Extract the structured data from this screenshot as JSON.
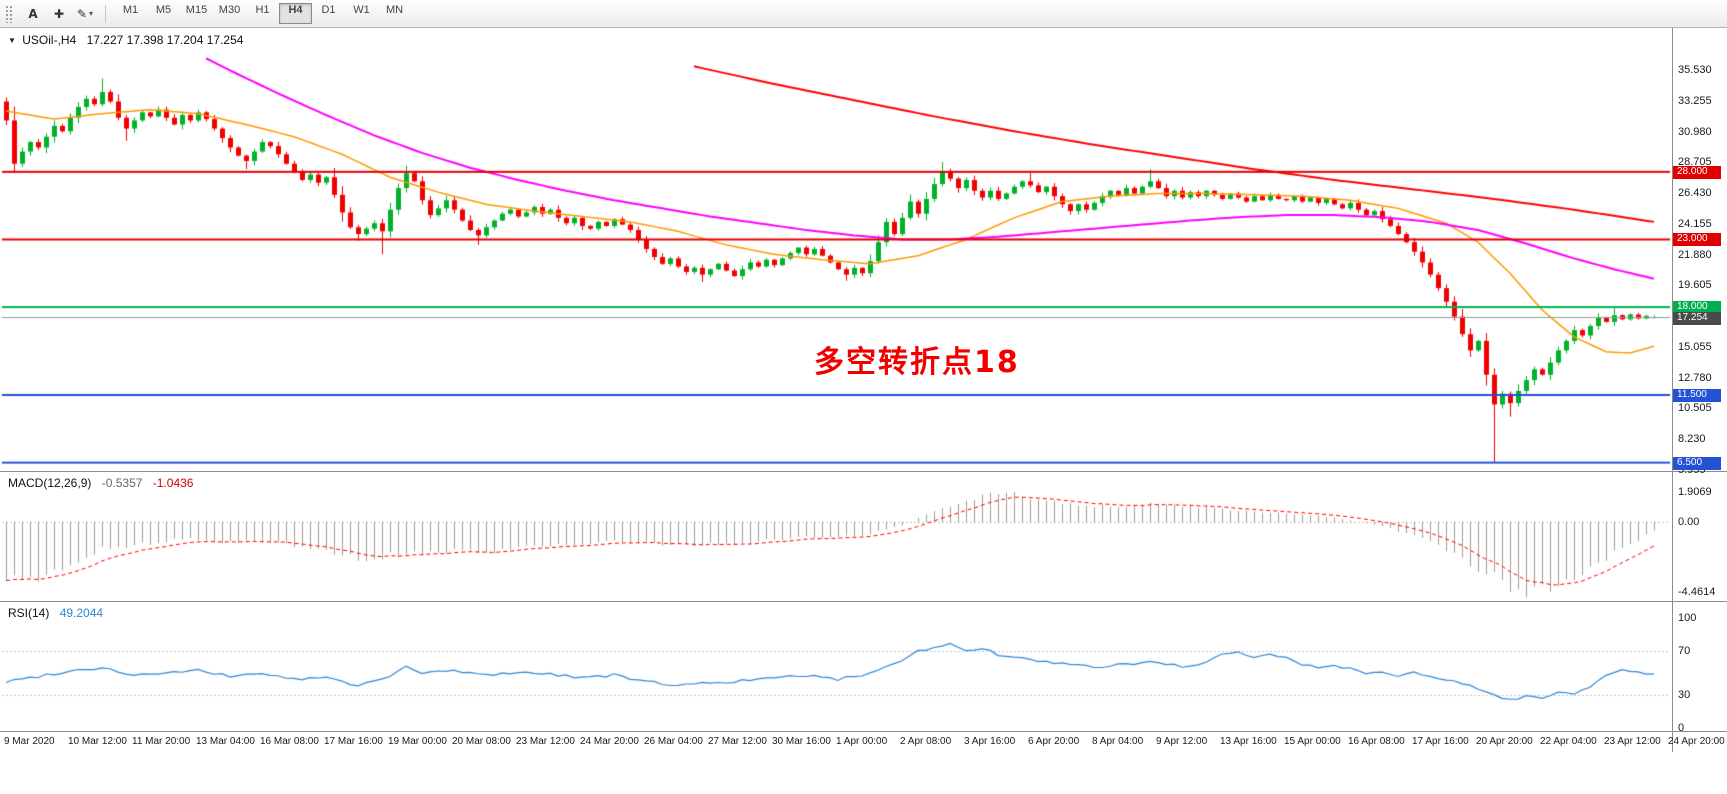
{
  "toolbar": {
    "text_tool_label": "A",
    "timeframes": [
      "M1",
      "M5",
      "M15",
      "M30",
      "H1",
      "H4",
      "D1",
      "W1",
      "MN"
    ],
    "active_timeframe": "H4"
  },
  "icons": {
    "chevron_down": "▼",
    "crosshair": "✚",
    "pencil": "✎",
    "dropdown_arrow": "▾"
  },
  "chart": {
    "symbol_period": "USOil-,H4",
    "ohlc_text": "17.227 17.398 17.204 17.254"
  },
  "chart_data": {
    "type": "candlestick",
    "symbol": "USOil-",
    "timeframe": "H4",
    "current_ohlc": {
      "open": 17.227,
      "high": 17.398,
      "low": 17.204,
      "close": 17.254
    },
    "candle_colors": {
      "up": "#00B22A",
      "down": "#F20000"
    },
    "price_axis": {
      "tick_labels": [
        "35.530",
        "33.255",
        "30.980",
        "28.705",
        "26.430",
        "24.155",
        "21.880",
        "19.605",
        "15.055",
        "12.780",
        "10.505",
        "8.230",
        "5.955"
      ]
    },
    "time_axis": {
      "bars_per_label": 8,
      "labels": [
        "9 Mar 2020",
        "10 Mar 12:00",
        "11 Mar 20:00",
        "13 Mar 04:00",
        "16 Mar 08:00",
        "17 Mar 16:00",
        "19 Mar 00:00",
        "20 Mar 08:00",
        "23 Mar 12:00",
        "24 Mar 20:00",
        "26 Mar 04:00",
        "27 Mar 12:00",
        "30 Mar 16:00",
        "1 Apr 00:00",
        "2 Apr 08:00",
        "3 Apr 16:00",
        "6 Apr 20:00",
        "8 Apr 04:00",
        "9 Apr 12:00",
        "13 Apr 16:00",
        "15 Apr 00:00",
        "16 Apr 08:00",
        "17 Apr 16:00",
        "20 Apr 20:00",
        "22 Apr 04:00",
        "23 Apr 12:00",
        "24 Apr 20:00"
      ]
    },
    "hlines": [
      {
        "price": 28.0,
        "label": "28.000",
        "color": "#E00000"
      },
      {
        "price": 23.0,
        "label": "23.000",
        "color": "#E00000"
      },
      {
        "price": 18.0,
        "label": "18.000",
        "color": "#00B050"
      },
      {
        "price": 11.5,
        "label": "11.500",
        "color": "#2353D4"
      },
      {
        "price": 6.5,
        "label": "6.500",
        "color": "#2353D4"
      }
    ],
    "current_price": {
      "value": 17.254,
      "label": "17.254",
      "badge_color": "#4a4a4a",
      "line_color": "#9a9a9a"
    },
    "annotation": {
      "text": "多空转折点18",
      "color": "#F20000",
      "bar": 101,
      "price": 14.3
    },
    "bars": {
      "first_open": 33.2,
      "closes": [
        31.8,
        28.6,
        29.5,
        30.2,
        29.8,
        30.6,
        31.4,
        31.0,
        32.0,
        32.8,
        33.4,
        33.0,
        33.9,
        33.2,
        32.0,
        31.2,
        31.8,
        32.4,
        32.1,
        32.6,
        32.0,
        31.5,
        32.2,
        31.8,
        32.4,
        31.9,
        31.2,
        30.5,
        29.8,
        29.2,
        28.8,
        29.5,
        30.2,
        29.9,
        29.3,
        28.6,
        28.0,
        27.4,
        27.8,
        27.2,
        27.6,
        26.3,
        25.0,
        23.9,
        23.4,
        23.8,
        24.2,
        23.6,
        25.2,
        26.8,
        27.9,
        27.3,
        25.9,
        24.8,
        25.3,
        25.9,
        25.2,
        24.4,
        23.7,
        23.3,
        23.9,
        24.4,
        24.9,
        25.2,
        24.7,
        25.0,
        25.4,
        24.9,
        25.2,
        24.6,
        24.2,
        24.6,
        24.0,
        23.8,
        24.3,
        24.0,
        24.5,
        24.1,
        23.7,
        23.0,
        22.3,
        21.7,
        21.2,
        21.6,
        21.0,
        20.6,
        20.9,
        20.4,
        20.8,
        21.2,
        20.7,
        20.3,
        20.8,
        21.3,
        21.0,
        21.5,
        21.1,
        21.6,
        22.0,
        22.4,
        21.9,
        22.3,
        21.8,
        21.3,
        20.8,
        20.4,
        20.9,
        20.5,
        21.4,
        22.8,
        24.3,
        23.4,
        24.6,
        25.8,
        24.9,
        26.0,
        27.1,
        28.0,
        27.5,
        26.8,
        27.4,
        26.6,
        26.1,
        26.6,
        26.0,
        26.4,
        26.9,
        27.3,
        27.0,
        26.5,
        26.9,
        26.2,
        25.6,
        25.1,
        25.6,
        25.2,
        25.7,
        26.2,
        26.6,
        26.3,
        26.8,
        26.4,
        26.9,
        27.3,
        26.8,
        26.2,
        26.6,
        26.1,
        26.5,
        26.2,
        26.6,
        26.3,
        26.0,
        26.4,
        26.1,
        25.8,
        26.2,
        25.9,
        26.3,
        26.0,
        25.9,
        26.2,
        25.8,
        26.1,
        25.7,
        26.0,
        25.6,
        25.3,
        25.7,
        25.2,
        24.8,
        25.1,
        24.5,
        24.0,
        23.4,
        22.8,
        22.1,
        21.3,
        20.4,
        19.4,
        18.4,
        17.3,
        16.0,
        14.8,
        15.5,
        13.0,
        10.8,
        11.6,
        10.9,
        11.8,
        12.6,
        13.4,
        13.0,
        13.9,
        14.8,
        15.5,
        16.3,
        15.9,
        16.6,
        17.2,
        16.9,
        17.4,
        17.1,
        17.45,
        17.15,
        17.35,
        17.254
      ],
      "wick_overrides": {
        "0": {
          "high": 33.5
        },
        "1": {
          "low": 27.9
        },
        "12": {
          "high": 34.9
        },
        "15": {
          "low": 30.3
        },
        "30": {
          "low": 28.2
        },
        "44": {
          "low": 22.9
        },
        "47": {
          "low": 21.9
        },
        "50": {
          "high": 28.45
        },
        "59": {
          "low": 22.6
        },
        "87": {
          "low": 19.85
        },
        "105": {
          "low": 19.95
        },
        "110": {
          "high": 24.6
        },
        "117": {
          "high": 28.72
        },
        "128": {
          "high": 27.9
        },
        "143": {
          "high": 28.2
        },
        "185": {
          "low": 12.2
        },
        "186": {
          "low": 6.5
        },
        "188": {
          "low": 9.9
        },
        "201": {
          "high": 17.9
        },
        "206": {
          "open": 17.227,
          "high": 17.398,
          "low": 17.204
        }
      }
    },
    "moving_averages": [
      {
        "name": "ma-fast-orange",
        "color": "#FF9900",
        "width": 1.5,
        "points": [
          [
            0,
            32.5
          ],
          [
            6,
            31.9
          ],
          [
            12,
            32.3
          ],
          [
            18,
            32.6
          ],
          [
            24,
            32.3
          ],
          [
            30,
            31.5
          ],
          [
            36,
            30.6
          ],
          [
            42,
            29.3
          ],
          [
            48,
            27.6
          ],
          [
            54,
            26.5
          ],
          [
            60,
            25.6
          ],
          [
            66,
            25.1
          ],
          [
            72,
            24.7
          ],
          [
            78,
            24.3
          ],
          [
            84,
            23.6
          ],
          [
            90,
            22.6
          ],
          [
            96,
            21.9
          ],
          [
            102,
            21.5
          ],
          [
            108,
            21.2
          ],
          [
            114,
            21.8
          ],
          [
            120,
            23.0
          ],
          [
            126,
            24.6
          ],
          [
            132,
            25.8
          ],
          [
            138,
            26.2
          ],
          [
            144,
            26.4
          ],
          [
            150,
            26.4
          ],
          [
            156,
            26.3
          ],
          [
            162,
            26.2
          ],
          [
            168,
            25.9
          ],
          [
            174,
            25.3
          ],
          [
            180,
            24.2
          ],
          [
            184,
            22.8
          ],
          [
            188,
            20.5
          ],
          [
            192,
            17.8
          ],
          [
            196,
            15.8
          ],
          [
            200,
            14.7
          ],
          [
            203,
            14.6
          ],
          [
            206,
            15.1
          ]
        ]
      },
      {
        "name": "ma-mid-magenta",
        "color": "#FF00FF",
        "width": 2,
        "points": [
          [
            25,
            36.4
          ],
          [
            28,
            35.5
          ],
          [
            34,
            33.8
          ],
          [
            40,
            32.2
          ],
          [
            46,
            30.7
          ],
          [
            52,
            29.4
          ],
          [
            58,
            28.3
          ],
          [
            64,
            27.4
          ],
          [
            70,
            26.6
          ],
          [
            76,
            25.9
          ],
          [
            82,
            25.3
          ],
          [
            88,
            24.7
          ],
          [
            94,
            24.2
          ],
          [
            100,
            23.7
          ],
          [
            106,
            23.3
          ],
          [
            112,
            23.0
          ],
          [
            118,
            23.0
          ],
          [
            124,
            23.2
          ],
          [
            130,
            23.5
          ],
          [
            136,
            23.8
          ],
          [
            142,
            24.1
          ],
          [
            148,
            24.4
          ],
          [
            154,
            24.65
          ],
          [
            160,
            24.8
          ],
          [
            166,
            24.8
          ],
          [
            172,
            24.65
          ],
          [
            178,
            24.3
          ],
          [
            184,
            23.7
          ],
          [
            190,
            22.7
          ],
          [
            196,
            21.6
          ],
          [
            201,
            20.8
          ],
          [
            206,
            20.1
          ]
        ]
      },
      {
        "name": "ma-slow-red",
        "color": "#FF0000",
        "width": 2,
        "points": [
          [
            86,
            35.8
          ],
          [
            96,
            34.5
          ],
          [
            106,
            33.3
          ],
          [
            116,
            32.1
          ],
          [
            126,
            31.0
          ],
          [
            136,
            30.0
          ],
          [
            146,
            29.1
          ],
          [
            156,
            28.2
          ],
          [
            166,
            27.4
          ],
          [
            176,
            26.7
          ],
          [
            186,
            26.0
          ],
          [
            196,
            25.2
          ],
          [
            206,
            24.3
          ]
        ]
      }
    ],
    "macd": {
      "label": "MACD(12,26,9)",
      "main_value": "-0.5357",
      "signal_value": "-1.0436",
      "scale_labels": [
        "1.9069",
        "0.00",
        "-4.4614"
      ],
      "histogram_color": "#9c9c9c",
      "signal_color": "#FF0000",
      "anchors": [
        [
          0,
          -3.6
        ],
        [
          2,
          -3.9
        ],
        [
          4,
          -3.7
        ],
        [
          8,
          -2.7
        ],
        [
          12,
          -1.7
        ],
        [
          16,
          -1.5
        ],
        [
          20,
          -1.2
        ],
        [
          24,
          -1.1
        ],
        [
          28,
          -1.35
        ],
        [
          32,
          -1.25
        ],
        [
          36,
          -1.55
        ],
        [
          40,
          -1.8
        ],
        [
          44,
          -2.35
        ],
        [
          48,
          -2.1
        ],
        [
          52,
          -1.95
        ],
        [
          56,
          -1.85
        ],
        [
          60,
          -1.95
        ],
        [
          64,
          -1.7
        ],
        [
          68,
          -1.5
        ],
        [
          72,
          -1.35
        ],
        [
          76,
          -1.15
        ],
        [
          80,
          -1.35
        ],
        [
          84,
          -1.5
        ],
        [
          88,
          -1.45
        ],
        [
          92,
          -1.35
        ],
        [
          96,
          -1.15
        ],
        [
          100,
          -0.95
        ],
        [
          104,
          -1.0
        ],
        [
          108,
          -0.75
        ],
        [
          112,
          -0.2
        ],
        [
          116,
          0.7
        ],
        [
          120,
          1.4
        ],
        [
          124,
          1.9
        ],
        [
          128,
          1.6
        ],
        [
          132,
          1.25
        ],
        [
          136,
          1.0
        ],
        [
          140,
          1.05
        ],
        [
          144,
          1.15
        ],
        [
          148,
          1.0
        ],
        [
          152,
          0.85
        ],
        [
          156,
          0.7
        ],
        [
          160,
          0.55
        ],
        [
          164,
          0.4
        ],
        [
          168,
          0.1
        ],
        [
          172,
          -0.3
        ],
        [
          176,
          -0.85
        ],
        [
          180,
          -1.7
        ],
        [
          184,
          -2.9
        ],
        [
          188,
          -4.2
        ],
        [
          190,
          -4.46
        ],
        [
          192,
          -4.3
        ],
        [
          196,
          -3.5
        ],
        [
          200,
          -2.3
        ],
        [
          203,
          -1.4
        ],
        [
          206,
          -0.5357
        ]
      ]
    },
    "rsi": {
      "label": "RSI(14)",
      "value": "49.2044",
      "scale_labels": [
        "100",
        "70",
        "30",
        "0"
      ],
      "levels": [
        70,
        30
      ],
      "line_color": "#2F86D5",
      "anchors": [
        [
          0,
          42
        ],
        [
          4,
          47
        ],
        [
          8,
          52
        ],
        [
          12,
          55
        ],
        [
          16,
          48
        ],
        [
          20,
          50
        ],
        [
          24,
          52
        ],
        [
          28,
          47
        ],
        [
          32,
          50
        ],
        [
          36,
          44
        ],
        [
          40,
          46
        ],
        [
          44,
          38
        ],
        [
          48,
          48
        ],
        [
          50,
          55
        ],
        [
          52,
          50
        ],
        [
          56,
          52
        ],
        [
          60,
          48
        ],
        [
          64,
          51
        ],
        [
          68,
          49
        ],
        [
          72,
          46
        ],
        [
          76,
          48
        ],
        [
          80,
          42
        ],
        [
          84,
          39
        ],
        [
          88,
          41
        ],
        [
          92,
          43
        ],
        [
          96,
          45
        ],
        [
          100,
          48
        ],
        [
          104,
          44
        ],
        [
          108,
          50
        ],
        [
          112,
          62
        ],
        [
          114,
          70
        ],
        [
          116,
          73
        ],
        [
          118,
          76
        ],
        [
          120,
          70
        ],
        [
          122,
          73
        ],
        [
          124,
          66
        ],
        [
          128,
          62
        ],
        [
          132,
          58
        ],
        [
          136,
          55
        ],
        [
          140,
          58
        ],
        [
          144,
          60
        ],
        [
          148,
          55
        ],
        [
          150,
          60
        ],
        [
          152,
          66
        ],
        [
          154,
          68
        ],
        [
          156,
          65
        ],
        [
          158,
          68
        ],
        [
          160,
          64
        ],
        [
          162,
          58
        ],
        [
          164,
          55
        ],
        [
          166,
          57
        ],
        [
          168,
          54
        ],
        [
          170,
          50
        ],
        [
          172,
          52
        ],
        [
          174,
          48
        ],
        [
          176,
          50
        ],
        [
          178,
          46
        ],
        [
          180,
          44
        ],
        [
          182,
          40
        ],
        [
          184,
          36
        ],
        [
          186,
          30
        ],
        [
          188,
          26
        ],
        [
          190,
          29
        ],
        [
          192,
          27
        ],
        [
          194,
          33
        ],
        [
          196,
          31
        ],
        [
          198,
          37
        ],
        [
          200,
          47
        ],
        [
          202,
          53
        ],
        [
          204,
          50
        ],
        [
          206,
          49.2
        ]
      ]
    }
  }
}
